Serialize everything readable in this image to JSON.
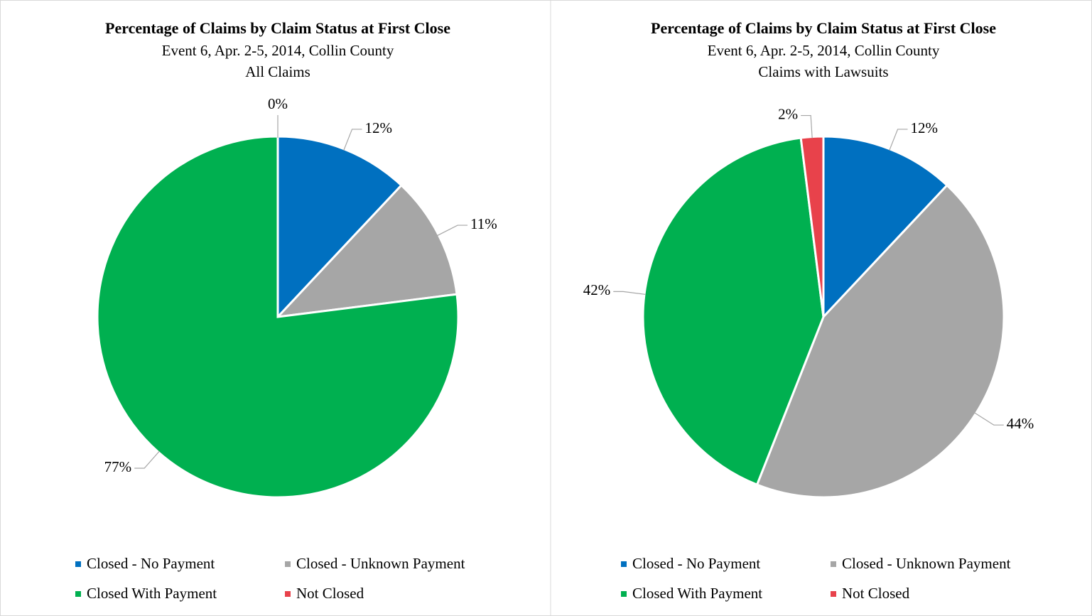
{
  "chart_data": [
    {
      "type": "pie",
      "title": "Percentage of Claims by Claim Status at First Close",
      "subtitle": [
        "Event 6, Apr. 2-5, 2014, Collin County",
        "All Claims"
      ],
      "categories": [
        "Closed - No Payment",
        "Closed - Unknown Payment",
        "Closed With Payment",
        "Not Closed"
      ],
      "values": [
        12,
        11,
        77,
        0
      ],
      "value_labels": [
        "12%",
        "11%",
        "77%",
        "0%"
      ],
      "colors": [
        "#0070c0",
        "#a6a6a6",
        "#00b050",
        "#e8424b"
      ],
      "legend": "bottom"
    },
    {
      "type": "pie",
      "title": "Percentage of Claims by Claim Status at First Close",
      "subtitle": [
        "Event 6, Apr. 2-5, 2014, Collin County",
        "Claims with Lawsuits"
      ],
      "categories": [
        "Closed - No Payment",
        "Closed - Unknown Payment",
        "Closed With Payment",
        "Not Closed"
      ],
      "values": [
        12,
        44,
        42,
        2
      ],
      "value_labels": [
        "12%",
        "44%",
        "42%",
        "2%"
      ],
      "colors": [
        "#0070c0",
        "#a6a6a6",
        "#00b050",
        "#e8424b"
      ],
      "legend": "bottom"
    }
  ]
}
